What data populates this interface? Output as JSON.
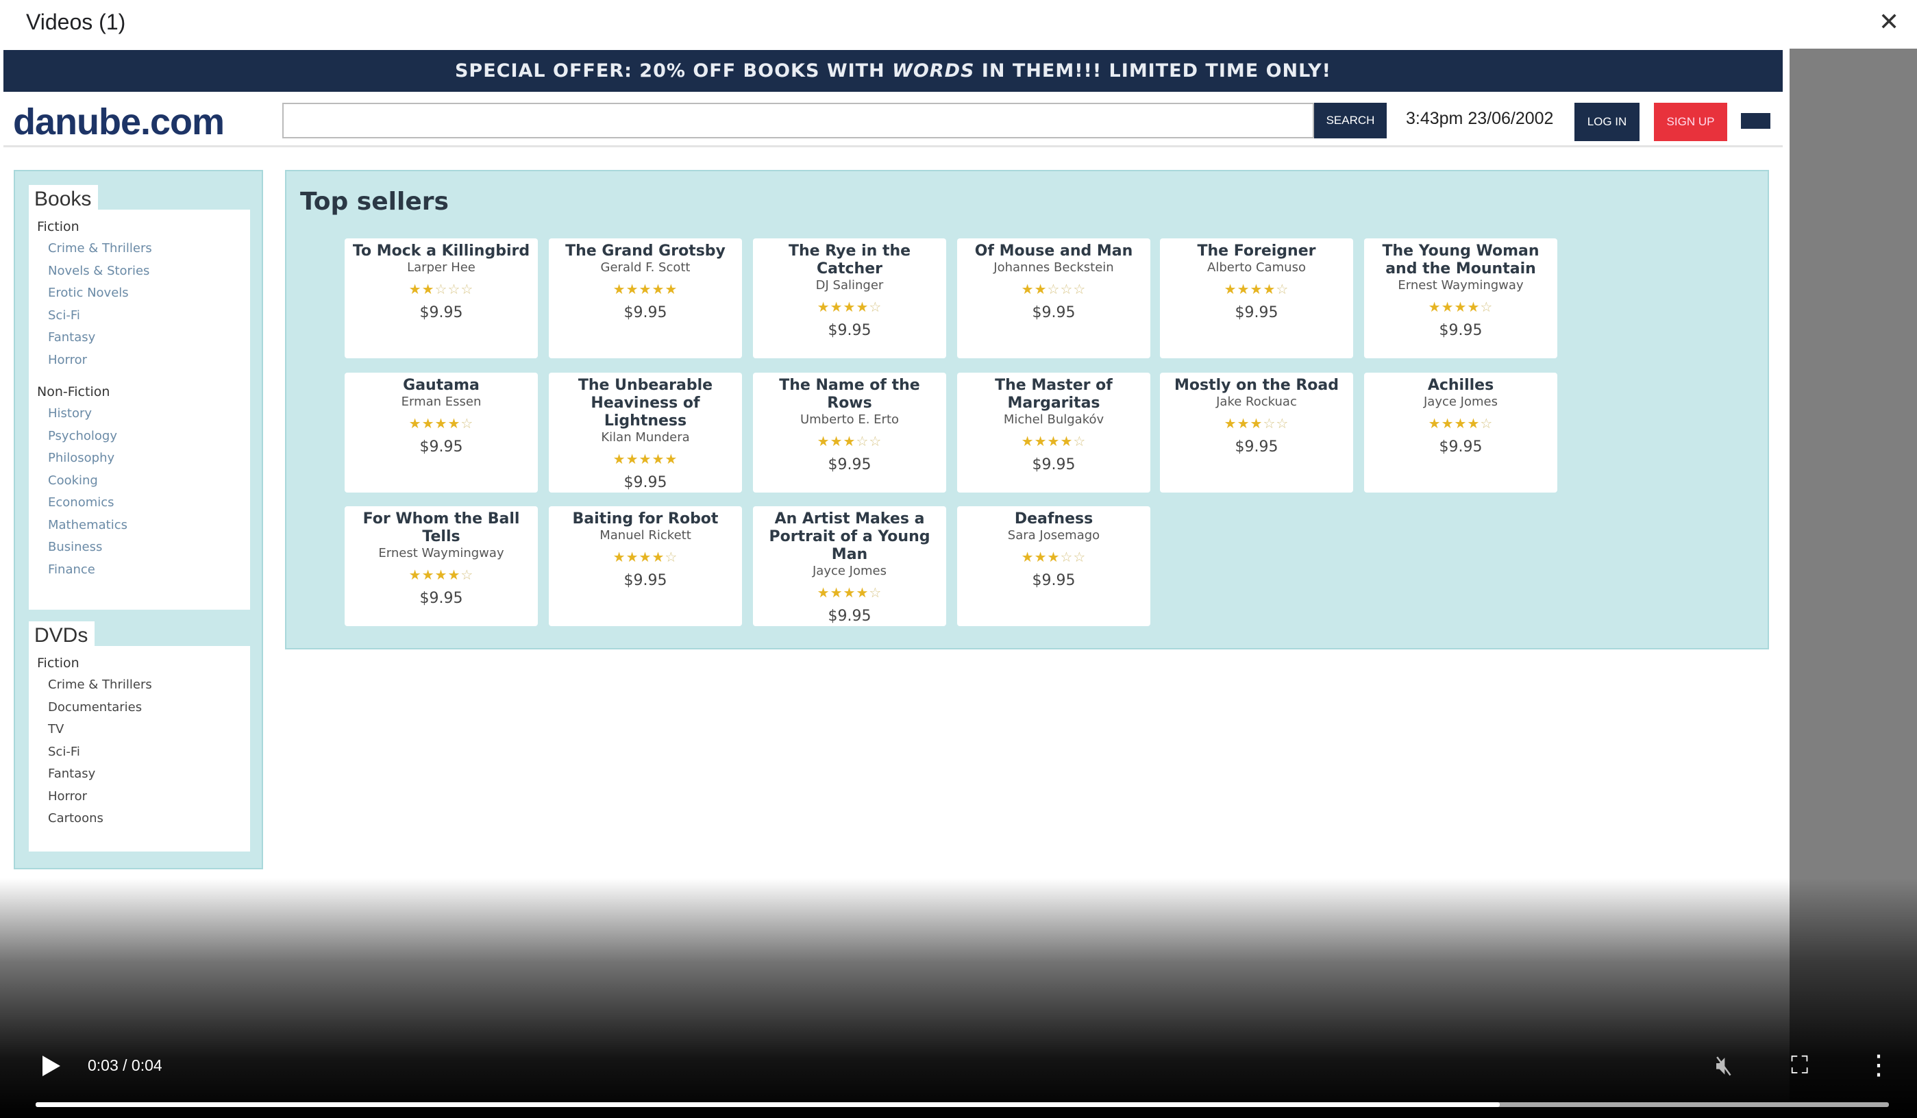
{
  "window": {
    "title": "Videos (1)",
    "close_icon": "close-icon"
  },
  "site": {
    "offer": {
      "before": "SPECIAL OFFER: 20% OFF BOOKS WITH ",
      "em": "WORDS",
      "after": " IN THEM!!! LIMITED TIME ONLY!"
    },
    "logo": "danube.com",
    "search": {
      "value": "",
      "placeholder": "",
      "button": "SEARCH"
    },
    "datetime": "3:43pm 23/06/2002",
    "login": "LOG IN",
    "signup": "SIGN UP",
    "colors": {
      "navy": "#1b2d4b",
      "red": "#e8323c",
      "panel": "#c9e8ea",
      "star": "#e6b422"
    }
  },
  "sidebar": {
    "books": {
      "title": "Books",
      "groups": [
        {
          "label": "Fiction",
          "items": [
            "Crime & Thrillers",
            "Novels & Stories",
            "Erotic Novels",
            "Sci-Fi",
            "Fantasy",
            "Horror"
          ]
        },
        {
          "label": "Non-Fiction",
          "items": [
            "History",
            "Psychology",
            "Philosophy",
            "Cooking",
            "Economics",
            "Mathematics",
            "Business",
            "Finance"
          ]
        }
      ]
    },
    "dvds": {
      "title": "DVDs",
      "groups": [
        {
          "label": "Fiction",
          "items": [
            "Crime & Thrillers",
            "Documentaries",
            "TV",
            "Sci-Fi",
            "Fantasy",
            "Horror",
            "Cartoons"
          ]
        }
      ]
    }
  },
  "main": {
    "title": "Top sellers",
    "books": [
      {
        "title": "To Mock a Killingbird",
        "author": "Larper Hee",
        "rating": 2,
        "price": "$9.95"
      },
      {
        "title": "The Grand Grotsby",
        "author": "Gerald F. Scott",
        "rating": 5,
        "price": "$9.95"
      },
      {
        "title": "The Rye in the Catcher",
        "author": "DJ Salinger",
        "rating": 4,
        "price": "$9.95"
      },
      {
        "title": "Of Mouse and Man",
        "author": "Johannes Beckstein",
        "rating": 2,
        "price": "$9.95"
      },
      {
        "title": "The Foreigner",
        "author": "Alberto Camuso",
        "rating": 4,
        "price": "$9.95"
      },
      {
        "title": "The Young Woman and the Mountain",
        "author": "Ernest Waymingway",
        "rating": 4,
        "price": "$9.95"
      },
      {
        "title": "Gautama",
        "author": "Erman Essen",
        "rating": 4,
        "price": "$9.95"
      },
      {
        "title": "The Unbearable Heaviness of Lightness",
        "author": "Kilan Mundera",
        "rating": 5,
        "price": "$9.95"
      },
      {
        "title": "The Name of the Rows",
        "author": "Umberto E. Erto",
        "rating": 3,
        "price": "$9.95"
      },
      {
        "title": "The Master of Margaritas",
        "author": "Michel Bulgakóv",
        "rating": 4,
        "price": "$9.95"
      },
      {
        "title": "Mostly on the Road",
        "author": "Jake Rockuac",
        "rating": 3,
        "price": "$9.95"
      },
      {
        "title": "Achilles",
        "author": "Jayce Jomes",
        "rating": 4,
        "price": "$9.95"
      },
      {
        "title": "For Whom the Ball Tells",
        "author": "Ernest Waymingway",
        "rating": 4,
        "price": "$9.95"
      },
      {
        "title": "Baiting for Robot",
        "author": "Manuel Rickett",
        "rating": 4,
        "price": "$9.95"
      },
      {
        "title": "An Artist Makes a Portrait of a Young Man",
        "author": "Jayce Jomes",
        "rating": 4,
        "price": "$9.95"
      },
      {
        "title": "Deafness",
        "author": "Sara Josemago",
        "rating": 3,
        "price": "$9.95"
      }
    ]
  },
  "player": {
    "time": "0:03 / 0:04",
    "progress": 0.79,
    "muted": true,
    "icons": [
      "play-icon",
      "muted-icon",
      "fullscreen-icon",
      "more-vert-icon"
    ]
  }
}
